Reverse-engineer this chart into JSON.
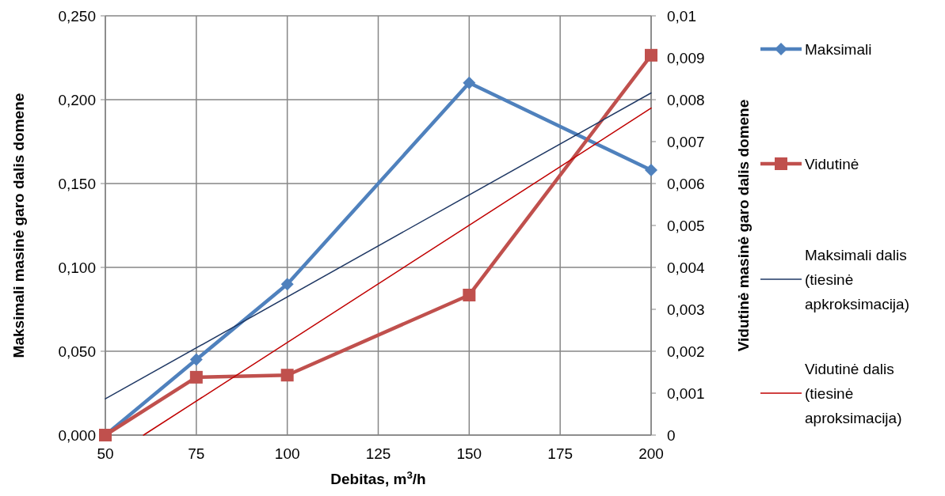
{
  "chart_data": {
    "type": "line",
    "xlabel": "Debitas, m$^{3}$/h",
    "ylabel": "Maksimali masinė garo dalis domene",
    "y2label": "Vidutinė masinė garo dalis domene",
    "xlim": [
      50,
      200
    ],
    "xticks": [
      50,
      75,
      100,
      125,
      150,
      175,
      200
    ],
    "ylim": [
      0,
      0.25
    ],
    "yticks": [
      {
        "value": 0,
        "label": "0,000"
      },
      {
        "value": 0.05,
        "label": "0,050"
      },
      {
        "value": 0.1,
        "label": "0,100"
      },
      {
        "value": 0.15,
        "label": "0,150"
      },
      {
        "value": 0.2,
        "label": "0,200"
      },
      {
        "value": 0.25,
        "label": "0,250"
      }
    ],
    "y2lim": [
      0,
      0.01
    ],
    "y2ticks": [
      0,
      {
        "value": 0.001,
        "label": "0,001"
      },
      {
        "value": 0.002,
        "label": "0,002"
      },
      {
        "value": 0.003,
        "label": "0,003"
      },
      {
        "value": 0.004,
        "label": "0,004"
      },
      {
        "value": 0.005,
        "label": "0,005"
      },
      {
        "value": 0.006,
        "label": "0,006"
      },
      {
        "value": 0.007,
        "label": "0,007"
      },
      {
        "value": 0.008,
        "label": "0,008"
      },
      {
        "value": 0.009,
        "label": "0,009"
      },
      {
        "value": 0.01,
        "label": "0,01"
      }
    ],
    "grid": true,
    "legend": "right",
    "x": [
      50,
      75,
      100,
      150,
      200
    ],
    "series": [
      {
        "name": "Maksimali",
        "color": "#4f81bd",
        "marker": "diamond",
        "values": [
          0,
          0.045,
          0.09,
          0.21,
          0.158
        ]
      },
      {
        "name": "Vidutinė",
        "color": "#c0504d",
        "marker": "square",
        "axis": "y2",
        "values": [
          0,
          0.00138,
          0.00143,
          0.00334,
          0.00906
        ]
      },
      {
        "name": "Maksimali dalis (tiesinė apkroksimacija)",
        "color": "#1f3864",
        "marker": "none",
        "x": [
          50,
          200
        ],
        "values": [
          0.0216,
          0.204
        ]
      },
      {
        "name": "Vidutinė dalis (tiesinė aproksimacija)",
        "color": "#c00000",
        "marker": "none",
        "axis": "y2",
        "x": [
          60.5,
          200
        ],
        "values": [
          0,
          0.0078
        ]
      }
    ]
  }
}
